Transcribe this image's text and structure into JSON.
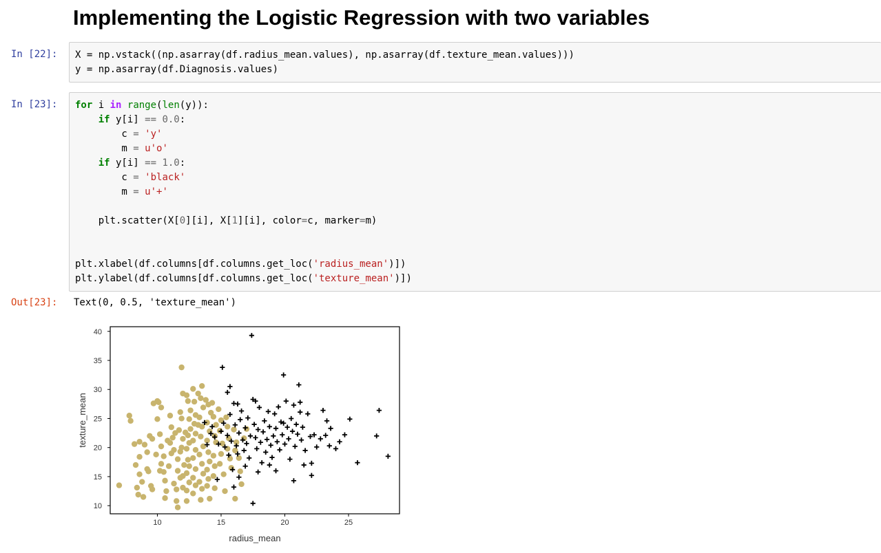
{
  "heading": "Implementing the Logistic Regression with two variables",
  "cells": {
    "c22": {
      "prompt": "In [22]:"
    },
    "c23": {
      "prompt": "In [23]:"
    },
    "out23": {
      "prompt": "Out[23]:",
      "text": "Text(0, 0.5, 'texture_mean')"
    }
  },
  "code_lines": [
    "X = np.vstack((np.asarray(df.radius_mean.values), np.asarray(df.texture_mean.values)))",
    "y = np.asarray(df.Diagnosis.values)",
    "for i in range(len(y)):",
    "    if y[i] == 0.0:",
    "        c = 'y'",
    "        m = u'o'",
    "    if y[i] == 1.0:",
    "        c = 'black'",
    "        m = u'+'",
    "    plt.scatter(X[0][i], X[1][i], color=c, marker=m)",
    "plt.xlabel(df.columns[df.columns.get_loc('radius_mean')])",
    "plt.ylabel(df.columns[df.columns.get_loc('texture_mean')])"
  ],
  "colors": {
    "benign": "#c8b46e",
    "malignant": "#000000",
    "in_prompt": "#303f9f",
    "out_prompt": "#d84315"
  },
  "chart_data": {
    "type": "scatter",
    "xlabel": "radius_mean",
    "ylabel": "texture_mean",
    "xlim": [
      6.3,
      29.0
    ],
    "ylim": [
      8.6,
      40.8
    ],
    "xticks": [
      10,
      15,
      20,
      25
    ],
    "yticks": [
      10,
      15,
      20,
      25,
      30,
      35,
      40
    ],
    "grid": false,
    "series": [
      {
        "color": "#c8b46e",
        "marker": "o",
        "points": [
          [
            7.0,
            13.5
          ],
          [
            7.8,
            25.5
          ],
          [
            7.9,
            24.6
          ],
          [
            8.2,
            20.6
          ],
          [
            8.6,
            21.0
          ],
          [
            8.6,
            18.4
          ],
          [
            8.3,
            17.0
          ],
          [
            8.6,
            15.4
          ],
          [
            8.4,
            13.1
          ],
          [
            8.5,
            11.9
          ],
          [
            8.8,
            14.1
          ],
          [
            8.9,
            11.5
          ],
          [
            9.0,
            20.5
          ],
          [
            9.2,
            16.3
          ],
          [
            9.3,
            15.9
          ],
          [
            9.4,
            22.0
          ],
          [
            9.2,
            19.2
          ],
          [
            9.5,
            13.4
          ],
          [
            9.6,
            12.8
          ],
          [
            9.6,
            21.5
          ],
          [
            9.7,
            27.6
          ],
          [
            10.0,
            28.0
          ],
          [
            10.1,
            27.8
          ],
          [
            10.3,
            26.9
          ],
          [
            10.0,
            24.9
          ],
          [
            10.2,
            22.3
          ],
          [
            10.3,
            20.2
          ],
          [
            10.5,
            18.5
          ],
          [
            10.3,
            17.2
          ],
          [
            10.5,
            15.8
          ],
          [
            10.6,
            14.3
          ],
          [
            10.7,
            12.5
          ],
          [
            10.6,
            11.3
          ],
          [
            10.9,
            16.8
          ],
          [
            11.0,
            20.8
          ],
          [
            11.1,
            19.0
          ],
          [
            11.2,
            21.7
          ],
          [
            11.1,
            23.5
          ],
          [
            11.4,
            22.5
          ],
          [
            11.3,
            13.8
          ],
          [
            11.5,
            12.8
          ],
          [
            11.5,
            10.8
          ],
          [
            11.6,
            9.7
          ],
          [
            11.6,
            18.0
          ],
          [
            11.6,
            16.0
          ],
          [
            11.8,
            14.8
          ],
          [
            11.8,
            19.3
          ],
          [
            11.9,
            20.0
          ],
          [
            12.0,
            21.5
          ],
          [
            12.0,
            15.1
          ],
          [
            12.0,
            13.1
          ],
          [
            11.9,
            25.0
          ],
          [
            11.8,
            26.1
          ],
          [
            11.9,
            33.8
          ],
          [
            12.0,
            29.3
          ],
          [
            12.3,
            29.0
          ],
          [
            12.4,
            28.0
          ],
          [
            12.5,
            24.9
          ],
          [
            12.6,
            23.2
          ],
          [
            12.4,
            22.1
          ],
          [
            12.5,
            20.8
          ],
          [
            12.3,
            19.8
          ],
          [
            12.4,
            17.9
          ],
          [
            12.5,
            16.8
          ],
          [
            12.3,
            15.6
          ],
          [
            12.5,
            14.0
          ],
          [
            12.3,
            12.6
          ],
          [
            12.3,
            10.8
          ],
          [
            12.8,
            30.1
          ],
          [
            12.9,
            27.9
          ],
          [
            13.0,
            25.6
          ],
          [
            12.9,
            24.1
          ],
          [
            13.0,
            22.4
          ],
          [
            12.8,
            21.2
          ],
          [
            13.0,
            19.6
          ],
          [
            12.8,
            18.2
          ],
          [
            13.0,
            16.3
          ],
          [
            12.8,
            14.8
          ],
          [
            13.0,
            13.5
          ],
          [
            12.8,
            12.1
          ],
          [
            13.2,
            29.3
          ],
          [
            13.4,
            28.5
          ],
          [
            13.5,
            30.6
          ],
          [
            13.6,
            26.9
          ],
          [
            13.3,
            25.2
          ],
          [
            13.5,
            23.6
          ],
          [
            13.4,
            21.9
          ],
          [
            13.6,
            20.2
          ],
          [
            13.3,
            18.8
          ],
          [
            13.5,
            17.2
          ],
          [
            13.6,
            15.5
          ],
          [
            13.3,
            14.1
          ],
          [
            13.5,
            12.9
          ],
          [
            13.4,
            11.0
          ],
          [
            13.8,
            28.2
          ],
          [
            14.0,
            27.4
          ],
          [
            13.9,
            24.3
          ],
          [
            14.1,
            22.8
          ],
          [
            13.9,
            21.2
          ],
          [
            14.0,
            19.2
          ],
          [
            14.1,
            17.6
          ],
          [
            13.9,
            16.2
          ],
          [
            14.0,
            14.6
          ],
          [
            13.9,
            13.4
          ],
          [
            14.1,
            11.2
          ],
          [
            14.3,
            27.7
          ],
          [
            14.4,
            25.3
          ],
          [
            14.6,
            23.9
          ],
          [
            14.5,
            22.0
          ],
          [
            14.6,
            20.9
          ],
          [
            14.4,
            18.6
          ],
          [
            14.5,
            16.8
          ],
          [
            14.4,
            15.1
          ],
          [
            14.5,
            13.0
          ],
          [
            14.8,
            26.6
          ],
          [
            15.0,
            24.7
          ],
          [
            14.9,
            22.9
          ],
          [
            15.1,
            20.7
          ],
          [
            15.0,
            18.9
          ],
          [
            14.9,
            17.2
          ],
          [
            15.2,
            15.4
          ],
          [
            15.3,
            12.5
          ],
          [
            15.5,
            23.6
          ],
          [
            15.6,
            21.6
          ],
          [
            15.5,
            19.8
          ],
          [
            15.7,
            18.1
          ],
          [
            15.8,
            16.5
          ],
          [
            16.0,
            23.1
          ],
          [
            16.2,
            20.9
          ],
          [
            16.1,
            19.5
          ],
          [
            16.4,
            18.2
          ],
          [
            16.5,
            15.9
          ],
          [
            16.1,
            11.2
          ],
          [
            17.0,
            23.2
          ],
          [
            16.8,
            21.6
          ],
          [
            16.6,
            13.7
          ],
          [
            11.0,
            25.5
          ],
          [
            11.3,
            19.6
          ],
          [
            11.7,
            23.0
          ],
          [
            12.6,
            26.4
          ],
          [
            13.2,
            23.9
          ],
          [
            14.2,
            26.0
          ],
          [
            15.4,
            25.2
          ],
          [
            10.8,
            21.2
          ],
          [
            9.9,
            18.8
          ],
          [
            10.2,
            16.0
          ],
          [
            12.1,
            17.0
          ],
          [
            12.2,
            22.6
          ]
        ]
      },
      {
        "color": "#000000",
        "marker": "+",
        "points": [
          [
            13.7,
            24.3
          ],
          [
            14.2,
            22.4
          ],
          [
            14.5,
            21.8
          ],
          [
            14.8,
            20.6
          ],
          [
            15.0,
            22.8
          ],
          [
            15.2,
            24.2
          ],
          [
            15.3,
            20.1
          ],
          [
            15.5,
            22.1
          ],
          [
            15.6,
            18.7
          ],
          [
            15.7,
            25.7
          ],
          [
            15.8,
            21.1
          ],
          [
            16.0,
            27.6
          ],
          [
            16.1,
            23.9
          ],
          [
            16.2,
            20.3
          ],
          [
            16.3,
            18.9
          ],
          [
            16.4,
            22.5
          ],
          [
            16.5,
            24.8
          ],
          [
            16.6,
            26.3
          ],
          [
            16.7,
            21.3
          ],
          [
            16.8,
            19.5
          ],
          [
            16.9,
            23.4
          ],
          [
            17.0,
            20.7
          ],
          [
            17.1,
            25.1
          ],
          [
            17.2,
            18.2
          ],
          [
            17.3,
            22.0
          ],
          [
            17.4,
            39.3
          ],
          [
            17.5,
            28.3
          ],
          [
            17.6,
            24.0
          ],
          [
            17.7,
            21.7
          ],
          [
            17.8,
            19.8
          ],
          [
            17.9,
            23.1
          ],
          [
            18.0,
            26.9
          ],
          [
            18.1,
            20.9
          ],
          [
            18.2,
            17.4
          ],
          [
            18.3,
            22.7
          ],
          [
            18.4,
            24.6
          ],
          [
            18.5,
            19.2
          ],
          [
            18.6,
            21.4
          ],
          [
            18.7,
            26.2
          ],
          [
            18.8,
            23.6
          ],
          [
            18.9,
            20.4
          ],
          [
            19.0,
            18.3
          ],
          [
            19.1,
            22.0
          ],
          [
            19.2,
            25.8
          ],
          [
            19.3,
            23.3
          ],
          [
            19.4,
            21.0
          ],
          [
            19.5,
            27.0
          ],
          [
            19.6,
            19.6
          ],
          [
            19.7,
            24.4
          ],
          [
            19.8,
            22.2
          ],
          [
            19.9,
            32.5
          ],
          [
            20.0,
            20.6
          ],
          [
            20.1,
            28.0
          ],
          [
            20.2,
            23.5
          ],
          [
            20.3,
            21.5
          ],
          [
            20.4,
            18.0
          ],
          [
            20.5,
            25.0
          ],
          [
            20.6,
            22.8
          ],
          [
            20.7,
            27.3
          ],
          [
            20.8,
            20.2
          ],
          [
            20.9,
            24.0
          ],
          [
            21.0,
            22.3
          ],
          [
            21.1,
            30.8
          ],
          [
            21.2,
            26.1
          ],
          [
            21.3,
            21.3
          ],
          [
            21.4,
            23.5
          ],
          [
            21.6,
            19.5
          ],
          [
            21.8,
            25.8
          ],
          [
            22.0,
            21.9
          ],
          [
            22.1,
            17.3
          ],
          [
            22.3,
            22.2
          ],
          [
            22.5,
            20.1
          ],
          [
            23.0,
            26.4
          ],
          [
            23.3,
            24.6
          ],
          [
            23.2,
            22.1
          ],
          [
            23.6,
            23.3
          ],
          [
            24.3,
            21.0
          ],
          [
            24.7,
            22.2
          ],
          [
            25.1,
            24.9
          ],
          [
            25.7,
            17.4
          ],
          [
            27.2,
            22.0
          ],
          [
            27.4,
            26.4
          ],
          [
            28.1,
            18.5
          ],
          [
            17.5,
            10.4
          ],
          [
            16.0,
            13.2
          ],
          [
            16.4,
            14.9
          ],
          [
            14.7,
            14.5
          ],
          [
            15.9,
            16.2
          ],
          [
            13.9,
            20.5
          ],
          [
            14.3,
            23.6
          ],
          [
            15.1,
            33.8
          ],
          [
            15.7,
            30.5
          ],
          [
            16.3,
            27.5
          ],
          [
            17.9,
            15.8
          ],
          [
            19.3,
            16.0
          ],
          [
            20.7,
            14.3
          ],
          [
            22.1,
            15.2
          ],
          [
            21.5,
            17.0
          ],
          [
            16.9,
            16.8
          ],
          [
            18.8,
            17.0
          ],
          [
            19.9,
            24.2
          ],
          [
            21.2,
            27.8
          ],
          [
            23.5,
            20.3
          ],
          [
            24.0,
            19.8
          ],
          [
            22.8,
            21.5
          ],
          [
            15.5,
            29.5
          ],
          [
            17.7,
            28.0
          ]
        ]
      }
    ]
  }
}
